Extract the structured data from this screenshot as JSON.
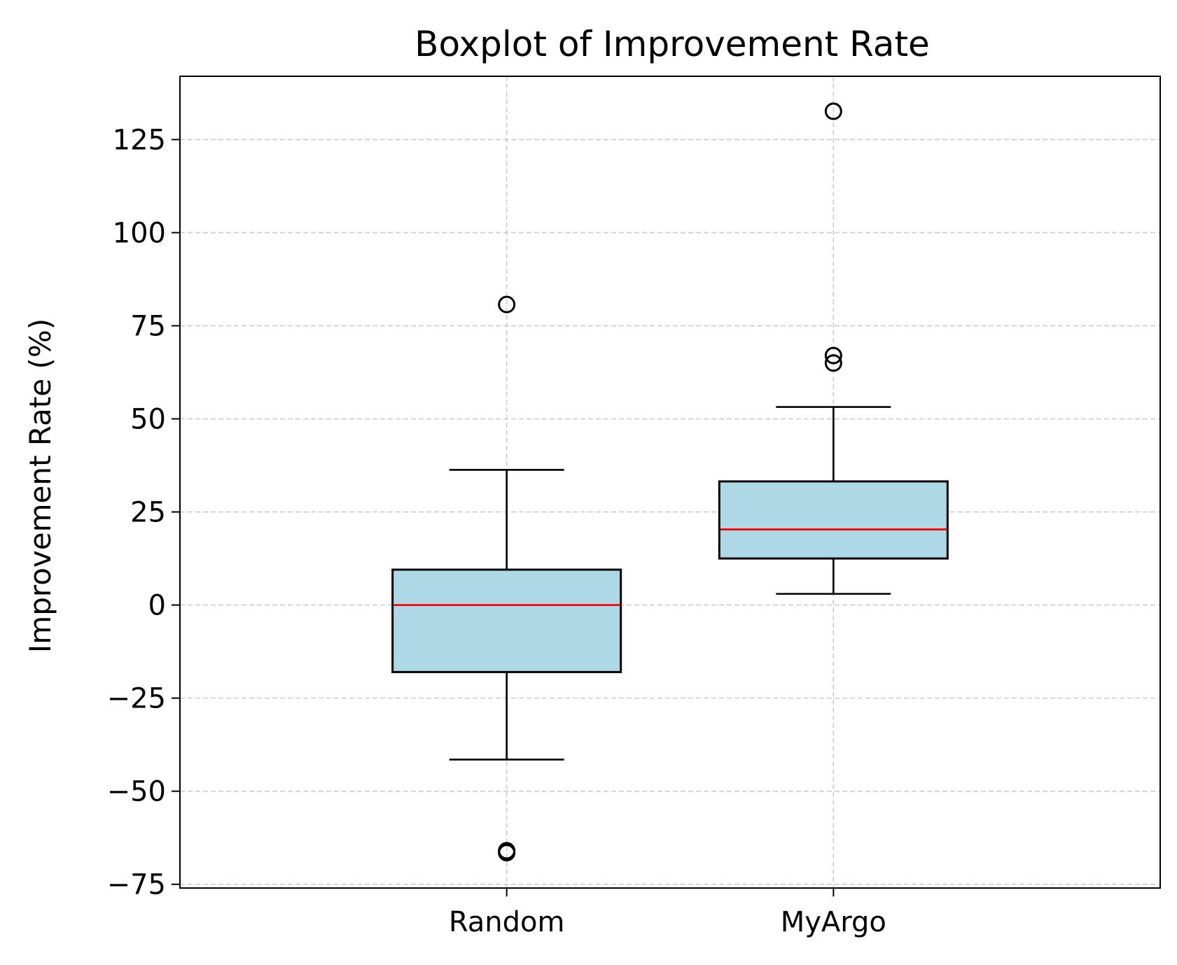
{
  "chart_data": {
    "type": "boxplot",
    "title": "Boxplot of Improvement Rate",
    "xlabel": "",
    "ylabel": "Improvement Rate (%)",
    "categories": [
      "Random",
      "MyArgo"
    ],
    "ylim": [
      -76,
      142
    ],
    "yticks": [
      -75,
      -50,
      -25,
      0,
      25,
      50,
      75,
      100,
      125
    ],
    "ytick_labels": [
      "−75",
      "−50",
      "−25",
      "0",
      "25",
      "50",
      "75",
      "100",
      "125"
    ],
    "grid": true,
    "boxes": [
      {
        "category": "Random",
        "whisker_low": -41.5,
        "q1": -18.0,
        "median": 0.0,
        "q3": 9.5,
        "whisker_high": 36.3,
        "outliers": [
          80.7,
          -66.0,
          -66.5
        ]
      },
      {
        "category": "MyArgo",
        "whisker_low": 3.0,
        "q1": 12.5,
        "median": 20.3,
        "q3": 33.2,
        "whisker_high": 53.2,
        "outliers": [
          132.6,
          67.0,
          65.0
        ]
      }
    ],
    "colors": {
      "box_fill": "#add8e6",
      "median": "#ff0000",
      "edge": "#000000",
      "grid": "#cccccc"
    }
  }
}
